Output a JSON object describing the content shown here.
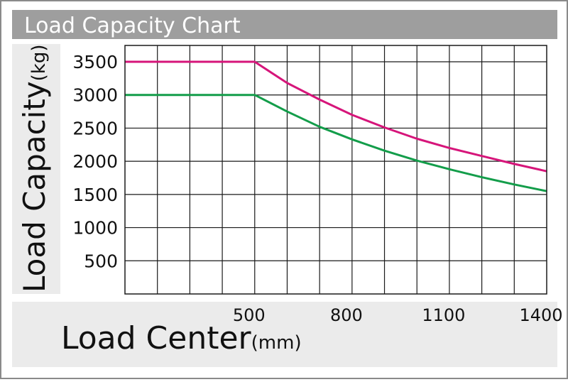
{
  "header": {
    "title": "Load Capacity Chart"
  },
  "chart_data": {
    "type": "line",
    "title": "Load Capacity Chart",
    "xlabel": "Load Center",
    "xlabel_unit": "(mm)",
    "ylabel": "Load Capacity",
    "ylabel_unit": "(kg)",
    "xlim": [
      100,
      1400
    ],
    "ylim": [
      0,
      3500
    ],
    "x_ticks": [
      500,
      800,
      1100,
      1400
    ],
    "y_ticks": [
      500,
      1000,
      1500,
      2000,
      2500,
      3000,
      3500
    ],
    "grid": true,
    "colors": {
      "upper": "#d6157a",
      "lower": "#139d4a",
      "grid": "#1a1a1a",
      "panel": "#ebebeb",
      "title_bar": "#9e9e9e"
    },
    "series": [
      {
        "color": "#d6157a",
        "points": [
          [
            100,
            3500
          ],
          [
            500,
            3500
          ],
          [
            600,
            3180
          ],
          [
            700,
            2930
          ],
          [
            800,
            2700
          ],
          [
            900,
            2510
          ],
          [
            1000,
            2340
          ],
          [
            1100,
            2200
          ],
          [
            1200,
            2080
          ],
          [
            1300,
            1960
          ],
          [
            1400,
            1850
          ]
        ]
      },
      {
        "color": "#139d4a",
        "points": [
          [
            100,
            3000
          ],
          [
            500,
            3000
          ],
          [
            600,
            2750
          ],
          [
            700,
            2520
          ],
          [
            800,
            2330
          ],
          [
            900,
            2160
          ],
          [
            1000,
            2010
          ],
          [
            1100,
            1880
          ],
          [
            1200,
            1760
          ],
          [
            1300,
            1650
          ],
          [
            1400,
            1550
          ]
        ]
      }
    ]
  }
}
